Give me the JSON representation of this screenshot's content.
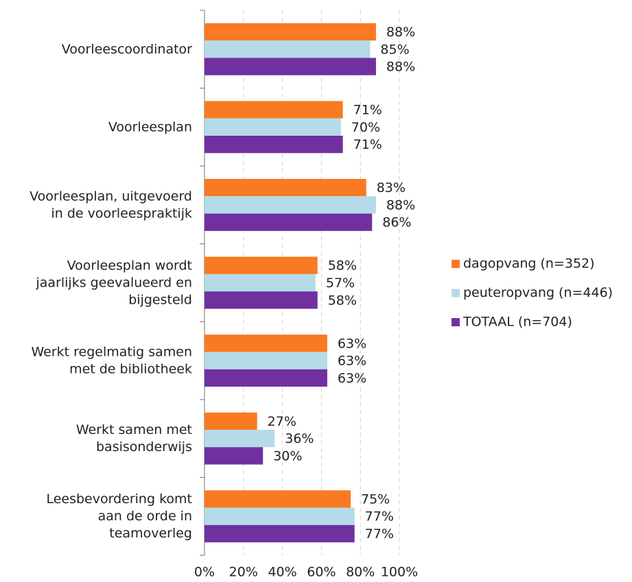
{
  "chart_data": {
    "type": "bar",
    "orientation": "horizontal",
    "categories": [
      "Voorleescoordinator",
      "Voorleesplan",
      "Voorleesplan, uitgevoerd\nin de voorleespraktijk",
      "Voorleesplan wordt\njaarlijks geevalueerd en\nbijgesteld",
      "Werkt regelmatig samen\nmet de bibliotheek",
      "Werkt samen met\nbasisonderwijs",
      "Leesbevordering komt\naan de orde in\nteamoverleg"
    ],
    "series": [
      {
        "name": "dagopvang (n=352)",
        "color": "#f97a22",
        "values": [
          88,
          71,
          83,
          58,
          63,
          27,
          75
        ],
        "value_labels": [
          "88%",
          "71%",
          "83%",
          "58%",
          "63%",
          "27%",
          "75%"
        ]
      },
      {
        "name": "peuteropvang (n=446)",
        "color": "#b4dbe7",
        "values": [
          85,
          70,
          88,
          57,
          63,
          36,
          77
        ],
        "value_labels": [
          "85%",
          "70%",
          "88%",
          "57%",
          "63%",
          "36%",
          "77%"
        ]
      },
      {
        "name": "TOTAAL (n=704)",
        "color": "#7030a0",
        "values": [
          88,
          71,
          86,
          58,
          63,
          30,
          77
        ],
        "value_labels": [
          "88%",
          "71%",
          "86%",
          "58%",
          "63%",
          "30%",
          "77%"
        ]
      }
    ],
    "xlim": [
      0,
      100
    ],
    "xticks": [
      {
        "value": 0,
        "label": "0%"
      },
      {
        "value": 20,
        "label": "20%"
      },
      {
        "value": 40,
        "label": "40%"
      },
      {
        "value": 60,
        "label": "60%"
      },
      {
        "value": 80,
        "label": "80%"
      },
      {
        "value": 100,
        "label": "100%"
      }
    ],
    "grid": true,
    "legend": "right"
  }
}
